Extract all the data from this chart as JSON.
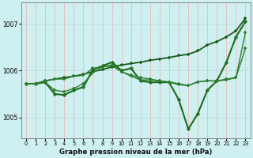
{
  "title": "Graphe pression niveau de la mer (hPa)",
  "bg_color": "#cef0f0",
  "grid_color_h": "#b8dede",
  "grid_color_v": "#f0b8b8",
  "xlim": [
    -0.5,
    23.5
  ],
  "ylim": [
    1004.55,
    1007.45
  ],
  "yticks": [
    1005,
    1006,
    1007
  ],
  "xticks": [
    0,
    1,
    2,
    3,
    4,
    5,
    6,
    7,
    8,
    9,
    10,
    11,
    12,
    13,
    14,
    15,
    16,
    17,
    18,
    19,
    20,
    21,
    22,
    23
  ],
  "series": [
    {
      "x": [
        0,
        1,
        2,
        3,
        4,
        5,
        6,
        7,
        8,
        9,
        10,
        11,
        12,
        13,
        14,
        15,
        16,
        17,
        18,
        19,
        20,
        21,
        22,
        23
      ],
      "y": [
        1005.72,
        1005.72,
        1005.78,
        1005.82,
        1005.85,
        1005.88,
        1005.92,
        1005.98,
        1006.02,
        1006.08,
        1006.12,
        1006.15,
        1006.18,
        1006.22,
        1006.25,
        1006.28,
        1006.32,
        1006.35,
        1006.42,
        1006.55,
        1006.62,
        1006.72,
        1006.85,
        1007.12
      ],
      "color": "#1a5c1a",
      "lw": 1.3,
      "marker": "+"
    },
    {
      "x": [
        0,
        1,
        2,
        3,
        4,
        5,
        6,
        7,
        8,
        9,
        10,
        11,
        12,
        13,
        14,
        15,
        16,
        17,
        18,
        19,
        20,
        21,
        22,
        23
      ],
      "y": [
        1005.72,
        1005.72,
        1005.75,
        1005.5,
        1005.48,
        1005.58,
        1005.65,
        1006.02,
        1006.1,
        1006.18,
        1006.0,
        1006.05,
        1005.78,
        1005.75,
        1005.75,
        1005.75,
        1005.38,
        1004.75,
        1005.08,
        1005.58,
        1005.78,
        1006.18,
        1006.72,
        1007.05
      ],
      "color": "#1a6b1a",
      "lw": 1.5,
      "marker": "D"
    },
    {
      "x": [
        0,
        1,
        2,
        3,
        4,
        5,
        6,
        7,
        8,
        9,
        10,
        11,
        12,
        13,
        14,
        15,
        16,
        17,
        18,
        19,
        20,
        21,
        22,
        23
      ],
      "y": [
        1005.72,
        1005.72,
        1005.78,
        1005.82,
        1005.82,
        1005.88,
        1005.9,
        1006.05,
        1006.08,
        1006.12,
        1005.98,
        1005.9,
        1005.85,
        1005.82,
        1005.78,
        1005.76,
        1005.72,
        1005.68,
        1005.76,
        1005.78,
        1005.78,
        1005.8,
        1005.85,
        1006.82
      ],
      "color": "#2e7d2e",
      "lw": 1.0,
      "marker": "+"
    },
    {
      "x": [
        0,
        1,
        2,
        3,
        4,
        5,
        6,
        7,
        8,
        9,
        10,
        11,
        12,
        13,
        14,
        15,
        16,
        17,
        18,
        19,
        20,
        21,
        22,
        23
      ],
      "y": [
        1005.72,
        1005.72,
        1005.75,
        1005.58,
        1005.55,
        1005.62,
        1005.72,
        1005.95,
        1006.08,
        1006.1,
        1005.98,
        1005.88,
        1005.8,
        1005.8,
        1005.78,
        1005.75,
        1005.7,
        1005.68,
        1005.76,
        1005.78,
        1005.78,
        1005.82,
        1005.85,
        1006.48
      ],
      "color": "#2e7d2e",
      "lw": 1.0,
      "marker": "+"
    }
  ]
}
